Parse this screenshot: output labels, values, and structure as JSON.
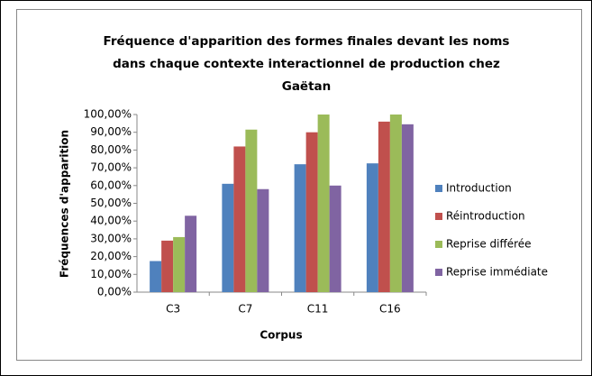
{
  "chart_data": {
    "type": "bar",
    "title": [
      "Fréquence d'apparition des formes finales  devant les noms",
      "dans chaque contexte interactionnel de production chez",
      "Gaëtan"
    ],
    "xlabel": "Corpus",
    "ylabel": "Fréquences d'apparition",
    "categories": [
      "C3",
      "C7",
      "C11",
      "C16"
    ],
    "series": [
      {
        "name": "Introduction",
        "color": "#4f81bd",
        "values": [
          17.5,
          61,
          72,
          72.5
        ]
      },
      {
        "name": "Réintroduction",
        "color": "#c0504d",
        "values": [
          29,
          82,
          90,
          96
        ]
      },
      {
        "name": "Reprise différée",
        "color": "#9bbb59",
        "values": [
          31,
          91.5,
          100,
          100
        ]
      },
      {
        "name": "Reprise immédiate",
        "color": "#8064a2",
        "values": [
          43,
          58,
          60,
          94.5
        ]
      }
    ],
    "ylim": [
      0,
      100
    ],
    "yticks": [
      {
        "value": 0,
        "label": "0,00%"
      },
      {
        "value": 10,
        "label": "10,00%"
      },
      {
        "value": 20,
        "label": "20,00%"
      },
      {
        "value": 30,
        "label": "30,00%"
      },
      {
        "value": 40,
        "label": "40,00%"
      },
      {
        "value": 50,
        "label": "50,00%"
      },
      {
        "value": 60,
        "label": "60,00%"
      },
      {
        "value": 70,
        "label": "70,00%"
      },
      {
        "value": 80,
        "label": "80,00%"
      },
      {
        "value": 90,
        "label": "90,00%"
      },
      {
        "value": 100,
        "label": "100,00%"
      }
    ],
    "grid": false,
    "legend": "right"
  }
}
